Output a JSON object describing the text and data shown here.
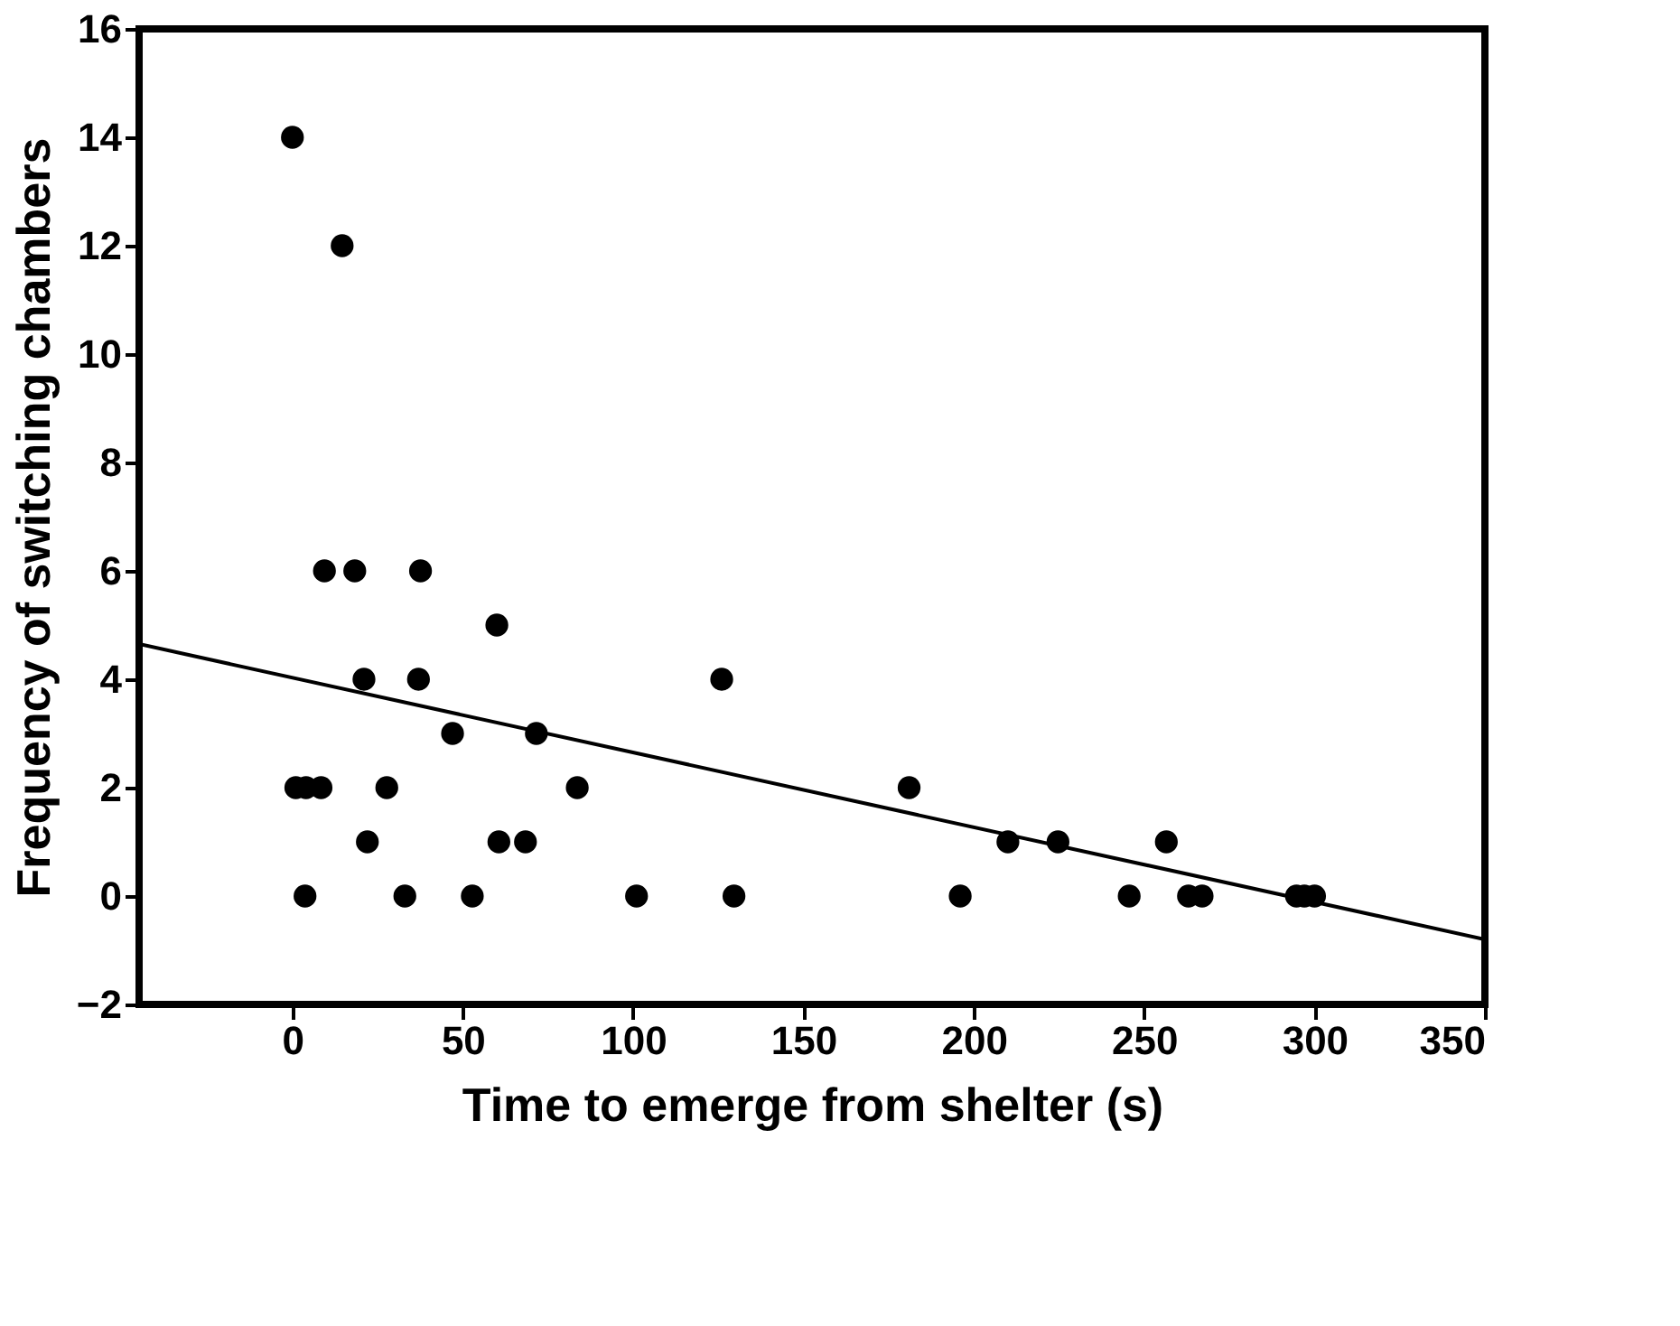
{
  "chart_data": {
    "type": "scatter",
    "xlabel": "Time to emerge from shelter (s)",
    "ylabel": "Frequency of switching chambers",
    "xlim": [
      -45,
      350
    ],
    "xticks": [
      0,
      50,
      100,
      150,
      200,
      250,
      300,
      350
    ],
    "ylim": [
      -2,
      16
    ],
    "yticks": [
      -2,
      0,
      2,
      4,
      6,
      8,
      10,
      12,
      14,
      16
    ],
    "grid": false,
    "marker": "circle",
    "series": [
      {
        "color": "#000000",
        "x": [
          0,
          14.6,
          1,
          4,
          3.7,
          9.4,
          8.4,
          18.3,
          21,
          22,
          27.7,
          33,
          37.6,
          37,
          47,
          52.8,
          60,
          60.6,
          68.4,
          71.6,
          83.6,
          101,
          126,
          129.6,
          181,
          196,
          210,
          224.7,
          245.6,
          256.5,
          263,
          267,
          294.7,
          297,
          300
        ],
        "values": [
          14,
          12,
          2,
          2,
          0,
          6,
          2,
          6,
          4,
          1,
          2,
          0,
          6,
          4,
          3,
          0,
          5,
          1,
          1,
          3,
          2,
          0,
          4,
          0,
          2,
          0,
          1,
          1,
          0,
          1,
          0,
          0,
          0,
          0,
          0
        ]
      },
      {
        "type": "line",
        "color": "#000000",
        "line_style": "solid",
        "marker": "none",
        "x": [
          -45,
          350
        ],
        "values": [
          4.65,
          -0.8
        ]
      }
    ]
  }
}
